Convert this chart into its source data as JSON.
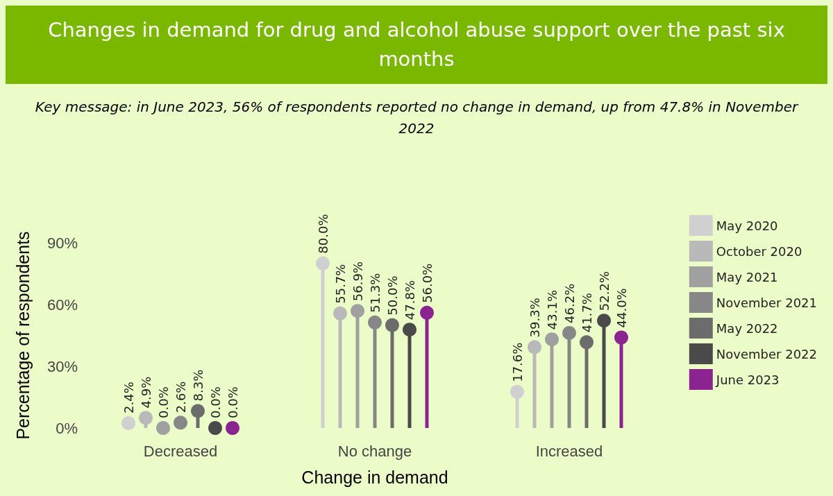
{
  "chart_data": {
    "type": "lollipop",
    "title": "Changes in demand for drug and alcohol abuse support over the past six months",
    "subtitle": "Key message: in June 2023, 56% of respondents reported no change in demand, up from 47.8% in November 2022",
    "xlabel": "Change in demand",
    "ylabel": "Percentage of respondents",
    "categories": [
      "Decreased",
      "No change",
      "Increased"
    ],
    "series": [
      {
        "name": "May 2020",
        "color": "#d0d0d0",
        "values": [
          2.4,
          80.0,
          17.6
        ],
        "value_labels": [
          "2.4%",
          "80.0%",
          "17.6%"
        ]
      },
      {
        "name": "October 2020",
        "color": "#b9b9b9",
        "values": [
          4.9,
          55.7,
          39.3
        ],
        "value_labels": [
          "4.9%",
          "55.7%",
          "39.3%"
        ]
      },
      {
        "name": "May 2021",
        "color": "#a0a0a0",
        "values": [
          0.0,
          56.9,
          43.1
        ],
        "value_labels": [
          "0.0%",
          "56.9%",
          "43.1%"
        ]
      },
      {
        "name": "November 2021",
        "color": "#878787",
        "values": [
          2.6,
          51.3,
          46.2
        ],
        "value_labels": [
          "2.6%",
          "51.3%",
          "46.2%"
        ]
      },
      {
        "name": "May 2022",
        "color": "#6c6c6c",
        "values": [
          8.3,
          50.0,
          41.7
        ],
        "value_labels": [
          "8.3%",
          "50.0%",
          "41.7%"
        ]
      },
      {
        "name": "November 2022",
        "color": "#4a4a4a",
        "values": [
          0.0,
          47.8,
          52.2
        ],
        "value_labels": [
          "0.0%",
          "47.8%",
          "52.2%"
        ]
      },
      {
        "name": "June 2023",
        "color": "#8b2391",
        "values": [
          0.0,
          56.0,
          44.0
        ],
        "value_labels": [
          "0.0%",
          "56.0%",
          "44.0%"
        ]
      }
    ],
    "ylim": [
      0,
      90
    ],
    "yticks": [
      {
        "value": 0,
        "label": "0%"
      },
      {
        "value": 30,
        "label": "30%"
      },
      {
        "value": 60,
        "label": "60%"
      },
      {
        "value": 90,
        "label": "90%"
      }
    ],
    "grid": false,
    "legend": "right",
    "marker": "circle"
  }
}
